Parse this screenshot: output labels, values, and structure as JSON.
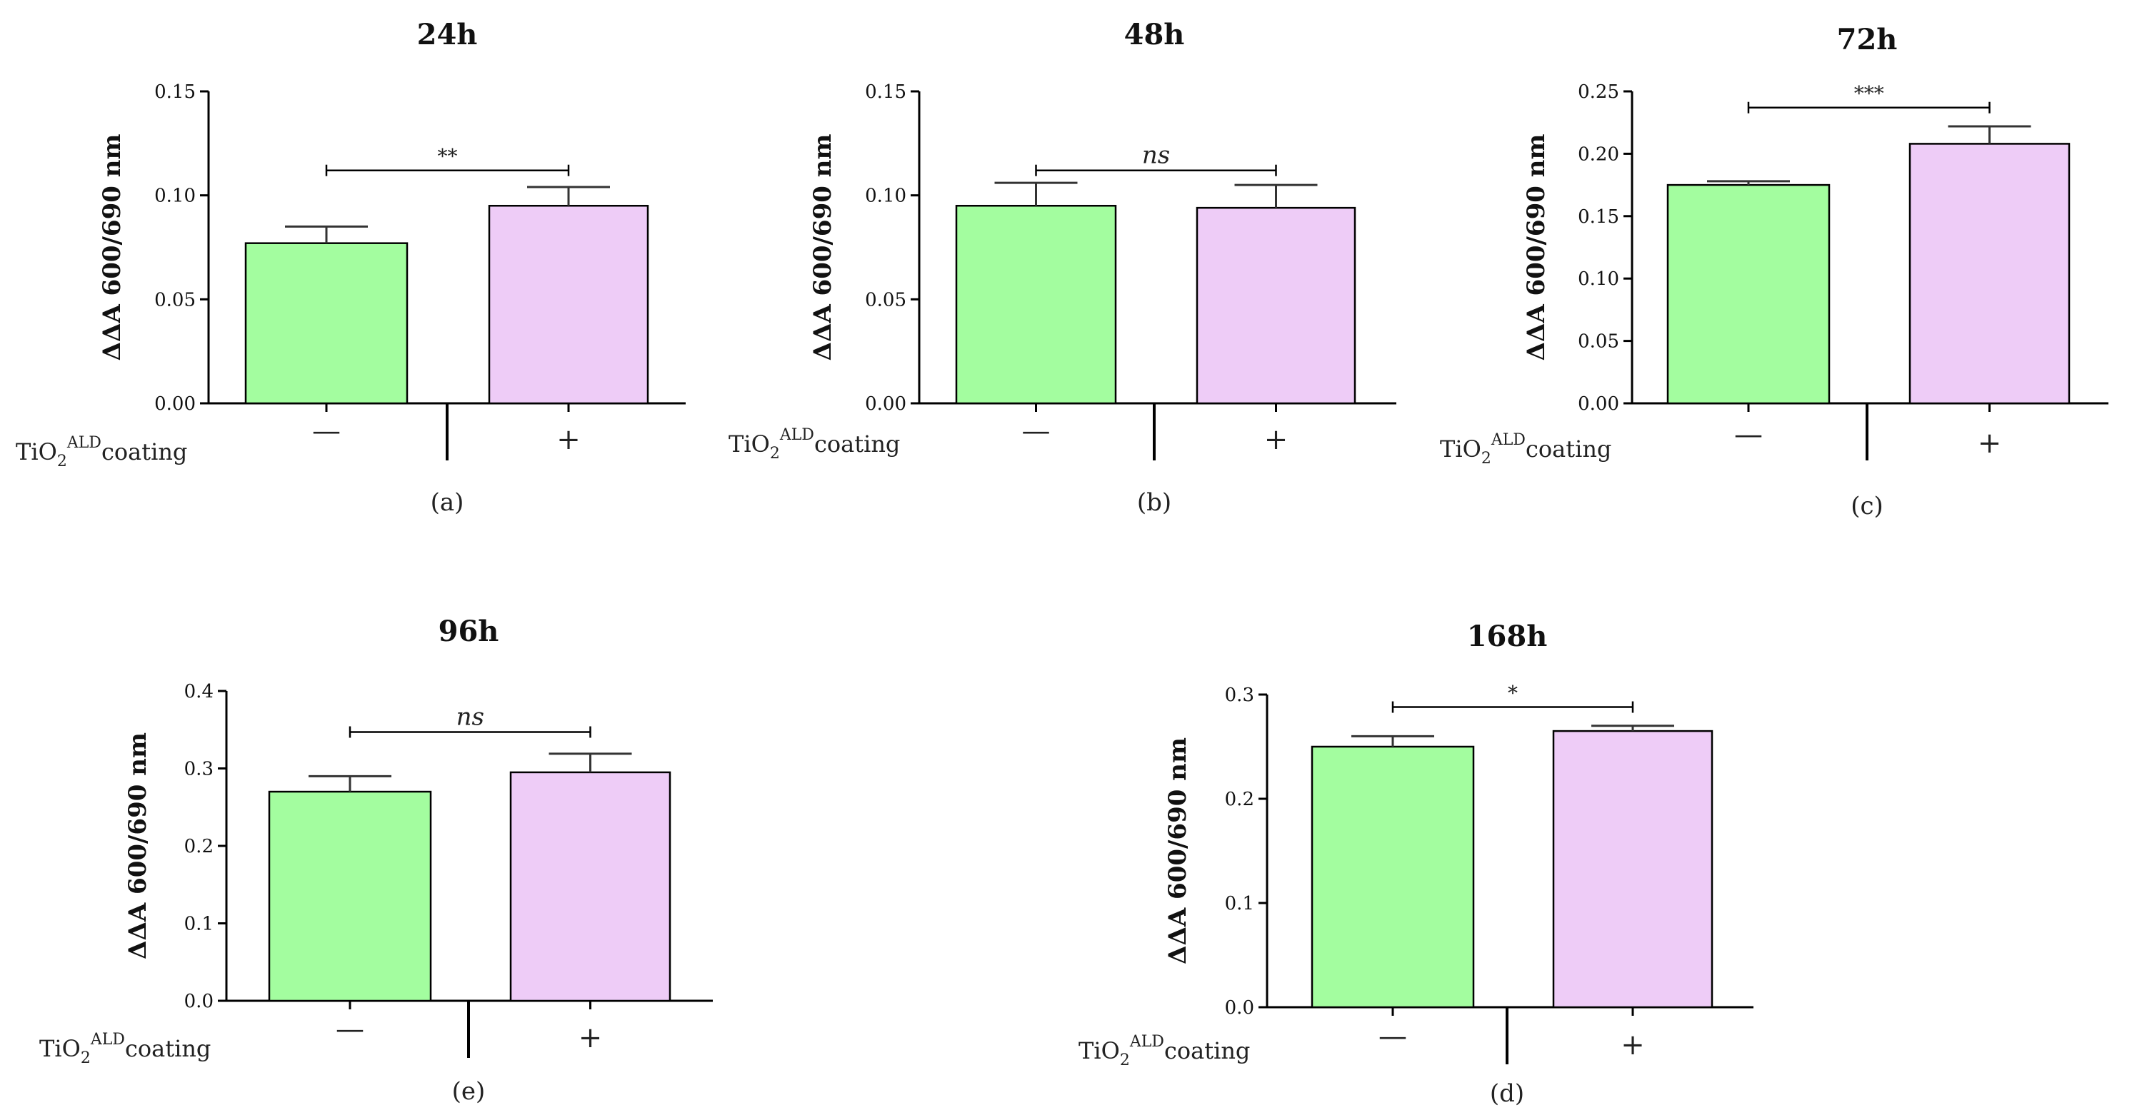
{
  "figure": {
    "coating_label": {
      "base": "TiO",
      "sub": "2",
      "sup": "ALD",
      "rest": "coating"
    }
  },
  "chart_data": [
    {
      "id": "a",
      "type": "bar",
      "title": "24h",
      "panel_label": "(a)",
      "ylabel": "ΔΔA 600/690 nm",
      "xlabel": "TiO2ALD coating",
      "categories": [
        "—",
        "+"
      ],
      "values": [
        0.077,
        0.095
      ],
      "errors": [
        0.008,
        0.009
      ],
      "colors": [
        "#a3fd9f",
        "#eeccf7"
      ],
      "ylim": [
        0,
        0.15
      ],
      "yticks": [
        0.0,
        0.05,
        0.1,
        0.15
      ],
      "tick_decimals": 2,
      "significance": {
        "label": "**",
        "italic": false,
        "y": 0.112
      }
    },
    {
      "id": "b",
      "type": "bar",
      "title": "48h",
      "panel_label": "(b)",
      "ylabel": "ΔΔA 600/690 nm",
      "xlabel": "TiO2ALD coating",
      "categories": [
        "—",
        "+"
      ],
      "values": [
        0.095,
        0.094
      ],
      "errors": [
        0.011,
        0.011
      ],
      "colors": [
        "#a3fd9f",
        "#eeccf7"
      ],
      "ylim": [
        0,
        0.15
      ],
      "yticks": [
        0.0,
        0.05,
        0.1,
        0.15
      ],
      "tick_decimals": 2,
      "significance": {
        "label": "ns",
        "italic": true,
        "y": 0.112
      }
    },
    {
      "id": "c",
      "type": "bar",
      "title": "72h",
      "panel_label": "(c)",
      "ylabel": "ΔΔA 600/690 nm",
      "xlabel": "TiO2ALD coating",
      "categories": [
        "—",
        "+"
      ],
      "values": [
        0.175,
        0.208
      ],
      "errors": [
        0.003,
        0.014
      ],
      "colors": [
        "#a3fd9f",
        "#eeccf7"
      ],
      "ylim": [
        0,
        0.25
      ],
      "yticks": [
        0.0,
        0.05,
        0.1,
        0.15,
        0.2,
        0.25
      ],
      "tick_decimals": 2,
      "significance": {
        "label": "***",
        "italic": false,
        "y": 0.237
      }
    },
    {
      "id": "e",
      "type": "bar",
      "title": "96h",
      "panel_label": "(e)",
      "ylabel": "ΔΔA 600/690 nm",
      "xlabel": "TiO2ALD coating",
      "categories": [
        "—",
        "+"
      ],
      "values": [
        0.27,
        0.295
      ],
      "errors": [
        0.02,
        0.024
      ],
      "colors": [
        "#a3fd9f",
        "#eeccf7"
      ],
      "ylim": [
        0,
        0.4
      ],
      "yticks": [
        0.0,
        0.1,
        0.2,
        0.3,
        0.4
      ],
      "tick_decimals": 1,
      "significance": {
        "label": "ns",
        "italic": true,
        "y": 0.347
      }
    },
    {
      "id": "d",
      "type": "bar",
      "title": "168h",
      "panel_label": "(d)",
      "ylabel": "ΔΔA 600/690 nm",
      "xlabel": "TiO2ALD coating",
      "categories": [
        "—",
        "+"
      ],
      "values": [
        0.25,
        0.265
      ],
      "errors": [
        0.01,
        0.005
      ],
      "colors": [
        "#a3fd9f",
        "#eeccf7"
      ],
      "ylim": [
        0,
        0.3
      ],
      "yticks": [
        0.0,
        0.1,
        0.2,
        0.3
      ],
      "tick_decimals": 1,
      "significance": {
        "label": "*",
        "italic": false,
        "y": 0.288
      }
    }
  ]
}
